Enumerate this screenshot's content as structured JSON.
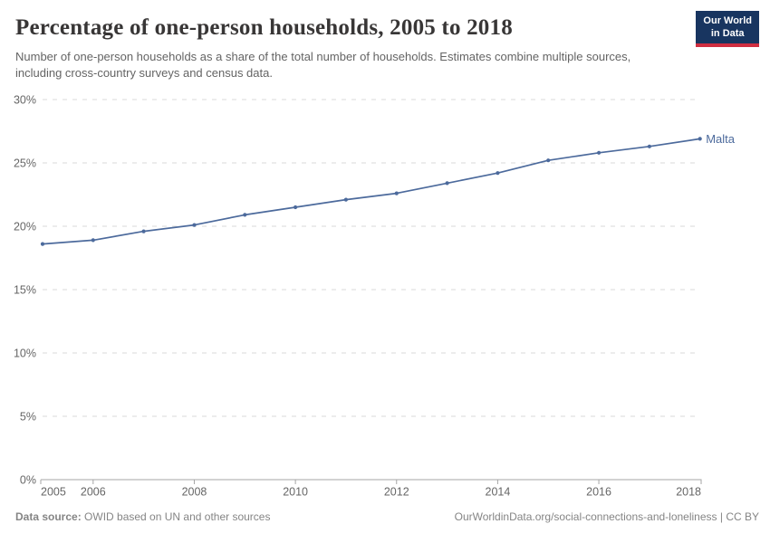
{
  "header": {
    "title": "Percentage of one-person households, 2005 to 2018",
    "subtitle": "Number of one-person households as a share of the total number of households. Estimates combine multiple sources, including cross-country surveys and census data.",
    "logo": {
      "line1": "Our World",
      "line2": "in Data",
      "bg_color": "#183560",
      "accent_color": "#cf2e41"
    }
  },
  "chart_data": {
    "type": "line",
    "title": "Percentage of one-person households, 2005 to 2018",
    "xlabel": "",
    "ylabel": "",
    "xlim": [
      2005,
      2018
    ],
    "ylim": [
      0,
      30
    ],
    "grid": "horizontal-dashed",
    "y_ticks": [
      0,
      5,
      10,
      15,
      20,
      25,
      30
    ],
    "y_tick_suffix": "%",
    "x_tick_labels": [
      "2005",
      "2006",
      "2008",
      "2010",
      "2012",
      "2014",
      "2016",
      "2018"
    ],
    "x_tick_years": [
      2005,
      2006,
      2008,
      2010,
      2012,
      2014,
      2016,
      2018
    ],
    "series": [
      {
        "name": "Malta",
        "color": "#4C6A9C",
        "x": [
          2005,
          2006,
          2007,
          2008,
          2009,
          2010,
          2011,
          2012,
          2013,
          2014,
          2015,
          2016,
          2017,
          2018
        ],
        "values": [
          18.6,
          18.9,
          19.6,
          20.1,
          20.9,
          21.5,
          22.1,
          22.6,
          23.4,
          24.2,
          25.2,
          25.8,
          26.3,
          26.9
        ]
      }
    ],
    "legend_position": "end-of-line-label"
  },
  "footer": {
    "datasource_label": "Data source:",
    "datasource_value": " OWID based on UN and other sources",
    "link": "OurWorldinData.org/social-connections-and-loneliness | CC BY"
  }
}
